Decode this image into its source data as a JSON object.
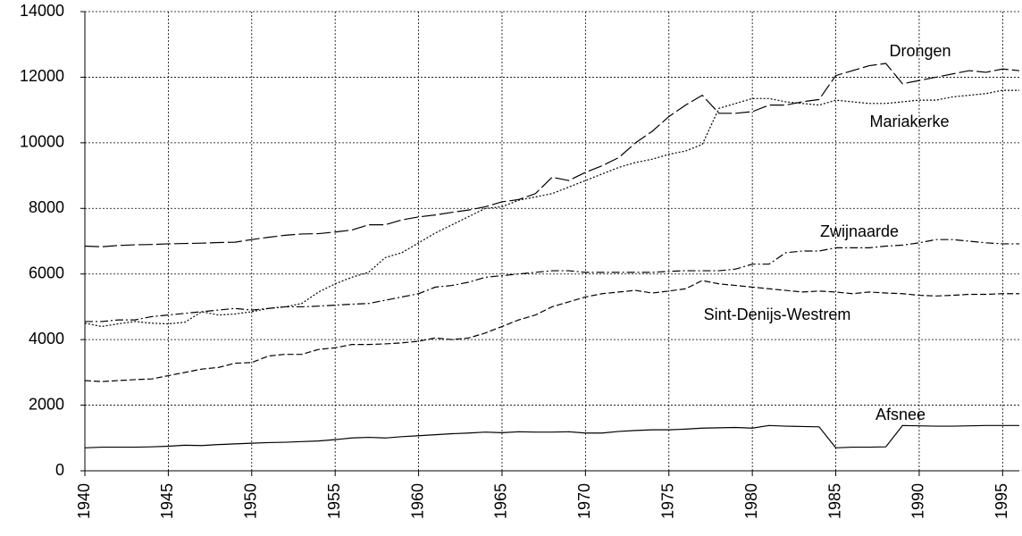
{
  "chart_data": {
    "type": "line",
    "x": [
      1940,
      1941,
      1942,
      1943,
      1944,
      1945,
      1946,
      1947,
      1948,
      1949,
      1950,
      1951,
      1952,
      1953,
      1954,
      1955,
      1956,
      1957,
      1958,
      1959,
      1960,
      1961,
      1962,
      1963,
      1964,
      1965,
      1966,
      1967,
      1968,
      1969,
      1970,
      1971,
      1972,
      1973,
      1974,
      1975,
      1976,
      1977,
      1978,
      1979,
      1980,
      1981,
      1982,
      1983,
      1984,
      1985,
      1986,
      1987,
      1988,
      1989,
      1990,
      1991,
      1992,
      1993,
      1994,
      1995,
      1996
    ],
    "xlim": [
      1940,
      1996
    ],
    "xticks": [
      1940,
      1945,
      1950,
      1955,
      1960,
      1965,
      1970,
      1975,
      1980,
      1985,
      1990,
      1995
    ],
    "ylim": [
      0,
      14000
    ],
    "yticks": [
      0,
      2000,
      4000,
      6000,
      8000,
      10000,
      12000,
      14000
    ],
    "grid": true,
    "series": [
      {
        "name": "Drongen",
        "color": "#000000",
        "values": [
          6850,
          6830,
          6870,
          6890,
          6900,
          6920,
          6930,
          6940,
          6960,
          6970,
          7050,
          7120,
          7180,
          7220,
          7230,
          7280,
          7340,
          7500,
          7500,
          7650,
          7740,
          7800,
          7880,
          7950,
          8050,
          8200,
          8270,
          8450,
          8950,
          8850,
          9100,
          9300,
          9550,
          10000,
          10350,
          10800,
          11150,
          11450,
          10900,
          10900,
          10950,
          11150,
          11150,
          11250,
          11320,
          12050,
          12200,
          12350,
          12420,
          11800,
          11900,
          12000,
          12100,
          12200,
          12150,
          12250,
          12200
        ]
      },
      {
        "name": "Mariakerke",
        "color": "#000000",
        "values": [
          4500,
          4400,
          4480,
          4550,
          4500,
          4480,
          4530,
          4850,
          4750,
          4780,
          4850,
          4950,
          5000,
          5100,
          5450,
          5700,
          5900,
          6050,
          6500,
          6650,
          6950,
          7250,
          7500,
          7750,
          8000,
          8050,
          8250,
          8350,
          8450,
          8650,
          8850,
          9050,
          9250,
          9400,
          9500,
          9650,
          9750,
          9950,
          11050,
          11200,
          11350,
          11350,
          11250,
          11200,
          11150,
          11300,
          11250,
          11200,
          11200,
          11250,
          11300,
          11300,
          11400,
          11450,
          11500,
          11600,
          11600
        ]
      },
      {
        "name": "Zwijnaarde",
        "color": "#000000",
        "values": [
          4550,
          4550,
          4600,
          4600,
          4700,
          4750,
          4800,
          4850,
          4900,
          4950,
          4900,
          4950,
          5000,
          5000,
          5020,
          5050,
          5080,
          5100,
          5200,
          5300,
          5400,
          5600,
          5650,
          5750,
          5900,
          5950,
          6000,
          6050,
          6100,
          6100,
          6050,
          6050,
          6050,
          6050,
          6050,
          6080,
          6100,
          6100,
          6100,
          6150,
          6300,
          6300,
          6650,
          6700,
          6700,
          6800,
          6800,
          6800,
          6850,
          6880,
          6950,
          7050,
          7050,
          7000,
          6950,
          6920,
          6920
        ]
      },
      {
        "name": "Sint-Denijs-Westrem",
        "color": "#000000",
        "values": [
          2750,
          2720,
          2750,
          2780,
          2800,
          2900,
          3000,
          3100,
          3150,
          3280,
          3300,
          3500,
          3550,
          3550,
          3700,
          3750,
          3850,
          3850,
          3870,
          3900,
          3950,
          4050,
          4000,
          4050,
          4200,
          4400,
          4600,
          4750,
          5000,
          5150,
          5300,
          5400,
          5450,
          5500,
          5420,
          5480,
          5550,
          5800,
          5700,
          5650,
          5600,
          5550,
          5500,
          5450,
          5480,
          5450,
          5400,
          5450,
          5420,
          5400,
          5350,
          5330,
          5350,
          5380,
          5380,
          5400,
          5400
        ]
      },
      {
        "name": "Afsnee",
        "color": "#000000",
        "values": [
          700,
          720,
          720,
          720,
          730,
          750,
          780,
          770,
          800,
          820,
          840,
          860,
          870,
          890,
          910,
          950,
          1000,
          1020,
          1000,
          1040,
          1070,
          1100,
          1130,
          1150,
          1180,
          1160,
          1190,
          1180,
          1180,
          1190,
          1150,
          1150,
          1200,
          1230,
          1250,
          1250,
          1270,
          1300,
          1310,
          1320,
          1300,
          1380,
          1360,
          1350,
          1340,
          700,
          720,
          720,
          730,
          1380,
          1370,
          1360,
          1360,
          1370,
          1380,
          1380,
          1380
        ]
      }
    ]
  }
}
